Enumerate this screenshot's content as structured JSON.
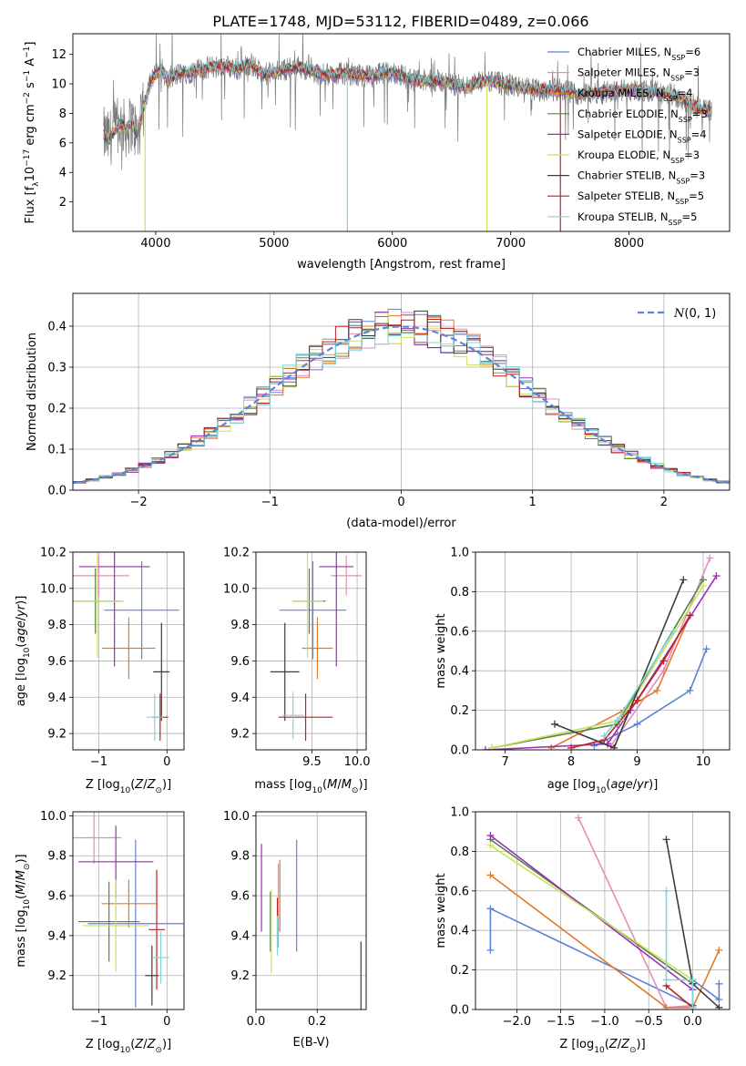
{
  "figure": {
    "title": "PLATE=1748, MJD=53112, FIBERID=0489, z=0.066",
    "colors": {
      "blue": "#5b84d6",
      "pink": "#e48cbf",
      "orange": "#e07b2a",
      "green": "#5a7f4e",
      "purple": "#9d2fb2",
      "lime": "#c8e35a",
      "black": "#3c3c3c",
      "red": "#c41f1f",
      "cyan": "#7fd5dd",
      "data_grey": "#7a7a7a",
      "grid": "#b0b0b0"
    }
  },
  "chart_data": [
    {
      "id": "spectrum",
      "type": "line",
      "xlabel": "wavelength [Angstrom, rest frame]",
      "ylabel": "Flux [f$_\\lambda$10$^{-17}$ erg cm$^{-2}$ s$^{-1}$ A$^{-1}$]",
      "ylabel_parts": [
        "Flux [f",
        "λ",
        "10",
        "−17",
        " erg cm",
        "−2",
        " s",
        "−1",
        " A",
        "−1",
        "]"
      ],
      "xlim": [
        3300,
        8850
      ],
      "ylim": [
        0,
        13.4
      ],
      "xticks": [
        4000,
        5000,
        6000,
        7000,
        8000
      ],
      "xtick_labels": [
        "4000",
        "5000",
        "6000",
        "7000",
        "8000"
      ],
      "yticks": [
        2,
        4,
        6,
        8,
        10,
        12
      ],
      "ytick_labels": [
        "2",
        "4",
        "6",
        "8",
        "10",
        "12"
      ],
      "grid": false,
      "legend_position": "top-right",
      "legend": [
        {
          "label": "Chabrier MILES, N",
          "sub": "SSP",
          "suffix": "=6",
          "color": "blue"
        },
        {
          "label": "Salpeter MILES, N",
          "sub": "SSP",
          "suffix": "=3",
          "color": "pink"
        },
        {
          "label": "Kroupa MILES, N",
          "sub": "SSP",
          "suffix": "=4",
          "color": "orange"
        },
        {
          "label": "Chabrier ELODIE, N",
          "sub": "SSP",
          "suffix": "=3",
          "color": "green"
        },
        {
          "label": "Salpeter ELODIE, N",
          "sub": "SSP",
          "suffix": "=4",
          "color": "purple"
        },
        {
          "label": "Kroupa ELODIE, N",
          "sub": "SSP",
          "suffix": "=3",
          "color": "lime"
        },
        {
          "label": "Chabrier STELIB, N",
          "sub": "SSP",
          "suffix": "=3",
          "color": "black"
        },
        {
          "label": "Salpeter STELIB, N",
          "sub": "SSP",
          "suffix": "=5",
          "color": "red"
        },
        {
          "label": "Kroupa STELIB, N",
          "sub": "SSP",
          "suffix": "=5",
          "color": "cyan"
        }
      ],
      "continuum": {
        "x": [
          3560,
          3600,
          3650,
          3700,
          3750,
          3800,
          3850,
          3900,
          3950,
          4000,
          4050,
          4100,
          4200,
          4300,
          4400,
          4500,
          4600,
          4700,
          4800,
          4900,
          5000,
          5200,
          5400,
          5600,
          5800,
          6000,
          6200,
          6400,
          6600,
          6800,
          7000,
          7200,
          7400,
          7600,
          7800,
          8000,
          8200,
          8400,
          8600,
          8700
        ],
        "y": [
          6.5,
          6.2,
          6.8,
          7.3,
          6.9,
          7.4,
          6.4,
          8.4,
          10.2,
          10.6,
          11.0,
          10.2,
          10.7,
          10.8,
          11.0,
          11.2,
          11.2,
          11.0,
          11.4,
          10.6,
          10.8,
          11.2,
          10.6,
          10.7,
          10.5,
          10.8,
          10.2,
          10.2,
          9.8,
          10.2,
          9.9,
          9.6,
          9.6,
          9.3,
          9.5,
          9.6,
          9.5,
          9.2,
          8.3,
          8.2
        ]
      },
      "model_spikes": [
        {
          "x": 3910,
          "y": 0,
          "color": "lime"
        },
        {
          "x": 5620,
          "y": 0,
          "color": "cyan"
        },
        {
          "x": 6800,
          "y": 0,
          "color": "lime"
        },
        {
          "x": 7420,
          "y": 0,
          "color": "red"
        }
      ]
    },
    {
      "id": "residuals",
      "type": "histogram",
      "xlabel": "(data-model)/error",
      "ylabel": "Normed distribution",
      "xlim": [
        -2.5,
        2.5
      ],
      "ylim": [
        0,
        0.48
      ],
      "xticks": [
        -2,
        -1,
        0,
        1,
        2
      ],
      "xtick_labels": [
        "−2",
        "−1",
        "0",
        "1",
        "2"
      ],
      "yticks": [
        0.0,
        0.1,
        0.2,
        0.3,
        0.4
      ],
      "ytick_labels": [
        "0.0",
        "0.1",
        "0.2",
        "0.3",
        "0.4"
      ],
      "grid": true,
      "legend_position": "top-right",
      "legend": [
        {
          "label": "N(0, 1)",
          "color": "blue",
          "style": "dashed"
        }
      ],
      "bin_width": 0.1,
      "reference_curve": "N(0,1)"
    },
    {
      "id": "age_vs_Z",
      "type": "scatter",
      "xlabel": "Z [log10(Z/Z⊙)]",
      "ylabel": "age  [log10(age/yr)]",
      "xlim": [
        -1.38,
        0.25
      ],
      "ylim": [
        9.11,
        10.2
      ],
      "xticks": [
        -1,
        0
      ],
      "xtick_labels": [
        "−1",
        "0"
      ],
      "yticks": [
        9.2,
        9.4,
        9.6,
        9.8,
        10.0,
        10.2
      ],
      "ytick_labels": [
        "9.2",
        "9.4",
        "9.6",
        "9.8",
        "10.0",
        "10.2"
      ],
      "grid": true,
      "points": [
        {
          "color": "blue",
          "x": -0.37,
          "xerr": 0.55,
          "y": 9.88,
          "yerr": 0.27
        },
        {
          "color": "pink",
          "x": -1.0,
          "xerr": 0.45,
          "y": 10.07,
          "yerr": 0.11
        },
        {
          "color": "orange",
          "x": -0.56,
          "xerr": 0.39,
          "y": 9.67,
          "yerr": 0.17
        },
        {
          "color": "green",
          "x": -1.05,
          "xerr": 0.38,
          "y": 9.93,
          "yerr": 0.18
        },
        {
          "color": "purple",
          "x": -0.77,
          "xerr": 0.52,
          "y": 10.12,
          "yerr": 0.55
        },
        {
          "color": "lime",
          "x": -1.02,
          "xerr": 0.39,
          "y": 9.93,
          "yerr": 0.31
        },
        {
          "color": "black",
          "x": -0.08,
          "xerr": 0.12,
          "y": 9.54,
          "yerr": 0.27
        },
        {
          "color": "red",
          "x": -0.1,
          "xerr": 0.12,
          "y": 9.29,
          "yerr": 0.13
        },
        {
          "color": "cyan",
          "x": -0.18,
          "xerr": 0.12,
          "y": 9.29,
          "yerr": 0.13
        }
      ]
    },
    {
      "id": "age_vs_mass",
      "type": "scatter",
      "xlabel": "mass [log10(M/M⊙)]",
      "ylabel": "",
      "xlim": [
        8.88,
        10.1
      ],
      "ylim": [
        9.11,
        10.2
      ],
      "xticks": [
        9.5,
        10.0
      ],
      "xtick_labels": [
        "9.5",
        "10.0"
      ],
      "yticks": [
        9.2,
        9.4,
        9.6,
        9.8,
        10.0,
        10.2
      ],
      "ytick_labels": [
        "9.2",
        "9.4",
        "9.6",
        "9.8",
        "10.0",
        "10.2"
      ],
      "grid": true,
      "points": [
        {
          "color": "blue",
          "x": 9.51,
          "xerr": 0.37,
          "y": 9.88,
          "yerr": 0.27
        },
        {
          "color": "pink",
          "x": 9.88,
          "xerr": 0.17,
          "y": 10.07,
          "yerr": 0.11
        },
        {
          "color": "orange",
          "x": 9.56,
          "xerr": 0.17,
          "y": 9.67,
          "yerr": 0.17
        },
        {
          "color": "green",
          "x": 9.47,
          "xerr": 0.18,
          "y": 9.93,
          "yerr": 0.18
        },
        {
          "color": "purple",
          "x": 9.77,
          "xerr": 0.19,
          "y": 10.12,
          "yerr": 0.55
        },
        {
          "color": "lime",
          "x": 9.45,
          "xerr": 0.17,
          "y": 9.93,
          "yerr": 0.31
        },
        {
          "color": "black",
          "x": 9.2,
          "xerr": 0.16,
          "y": 9.54,
          "yerr": 0.27
        },
        {
          "color": "red",
          "x": 9.43,
          "xerr": 0.3,
          "y": 9.29,
          "yerr": 0.13
        },
        {
          "color": "cyan",
          "x": 9.29,
          "xerr": 0.12,
          "y": 9.3,
          "yerr": 0.13
        }
      ]
    },
    {
      "id": "massweight_vs_age",
      "type": "line",
      "xlabel": "age  [log10(age/yr)]",
      "ylabel": "mass weight",
      "xlim": [
        6.55,
        10.4
      ],
      "ylim": [
        0,
        1.0
      ],
      "xticks": [
        7,
        8,
        9,
        10
      ],
      "xtick_labels": [
        "7",
        "8",
        "9",
        "10"
      ],
      "yticks": [
        0.0,
        0.2,
        0.4,
        0.6,
        0.8,
        1.0
      ],
      "ytick_labels": [
        "0.0",
        "0.2",
        "0.4",
        "0.6",
        "0.8",
        "1.0"
      ],
      "grid": true,
      "series": [
        {
          "color": "blue",
          "x": [
            8.35,
            8.7,
            9.0,
            9.8,
            10.05
          ],
          "y": [
            0.02,
            0.08,
            0.13,
            0.3,
            0.51
          ]
        },
        {
          "color": "pink",
          "x": [
            8.6,
            9.4,
            10.1
          ],
          "y": [
            0.02,
            0.4,
            0.97
          ]
        },
        {
          "color": "orange",
          "x": [
            7.7,
            8.8,
            9.3,
            9.8
          ],
          "y": [
            0.01,
            0.2,
            0.3,
            0.68
          ]
        },
        {
          "color": "green",
          "x": [
            6.8,
            8.7,
            10.0
          ],
          "y": [
            0.01,
            0.13,
            0.86
          ]
        },
        {
          "color": "purple",
          "x": [
            6.7,
            8.55,
            8.9,
            10.2
          ],
          "y": [
            0.0,
            0.03,
            0.2,
            0.88
          ]
        },
        {
          "color": "lime",
          "x": [
            6.8,
            8.75,
            10.0
          ],
          "y": [
            0.01,
            0.15,
            0.83
          ]
        },
        {
          "color": "black",
          "x": [
            7.75,
            8.65,
            9.7
          ],
          "y": [
            0.13,
            0.01,
            0.86
          ]
        },
        {
          "color": "red",
          "x": [
            8.0,
            8.5,
            9.0,
            9.4,
            9.8
          ],
          "y": [
            0.01,
            0.05,
            0.25,
            0.45,
            0.68
          ]
        },
        {
          "color": "cyan",
          "x": [
            8.5,
            8.7,
            9.55
          ],
          "y": [
            0.07,
            0.15,
            0.6
          ]
        }
      ]
    },
    {
      "id": "mass_vs_Z",
      "type": "scatter",
      "xlabel": "Z [log10(Z/Z⊙)]",
      "ylabel": "mass [log10(M/M⊙)]",
      "xlim": [
        -1.38,
        0.25
      ],
      "ylim": [
        9.03,
        10.02
      ],
      "xticks": [
        -1,
        0
      ],
      "xtick_labels": [
        "−1",
        "0"
      ],
      "yticks": [
        9.2,
        9.4,
        9.6,
        9.8,
        10.0
      ],
      "ytick_labels": [
        "9.2",
        "9.4",
        "9.6",
        "9.8",
        "10.0"
      ],
      "grid": true,
      "points": [
        {
          "color": "blue",
          "x": -0.46,
          "xerr": 0.7,
          "y": 9.46,
          "yerr": 0.42
        },
        {
          "color": "pink",
          "x": -1.07,
          "xerr": 0.4,
          "y": 9.89,
          "yerr": 0.13
        },
        {
          "color": "orange",
          "x": -0.56,
          "xerr": 0.4,
          "y": 9.56,
          "yerr": 0.12
        },
        {
          "color": "green",
          "x": -0.85,
          "xerr": 0.45,
          "y": 9.47,
          "yerr": 0.2
        },
        {
          "color": "purple",
          "x": -0.75,
          "xerr": 0.55,
          "y": 9.77,
          "yerr": 0.18
        },
        {
          "color": "lime",
          "x": -0.75,
          "xerr": 0.49,
          "y": 9.45,
          "yerr": 0.23
        },
        {
          "color": "black",
          "x": -0.22,
          "xerr": 0.1,
          "y": 9.2,
          "yerr": 0.15
        },
        {
          "color": "red",
          "x": -0.15,
          "xerr": 0.12,
          "y": 9.43,
          "yerr": 0.3
        },
        {
          "color": "cyan",
          "x": -0.09,
          "xerr": 0.12,
          "y": 9.29,
          "yerr": 0.13
        }
      ]
    },
    {
      "id": "mass_vs_EBV",
      "type": "scatter",
      "xlabel": "E(B-V)",
      "ylabel": "",
      "xlim": [
        0,
        0.36
      ],
      "ylim": [
        9.03,
        10.02
      ],
      "xticks": [
        0.0,
        0.2
      ],
      "xtick_labels": [
        "0.0",
        "0.2"
      ],
      "yticks": [
        9.2,
        9.4,
        9.6,
        9.8,
        10.0
      ],
      "ytick_labels": [
        "9.2",
        "9.4",
        "9.6",
        "9.8",
        "10.0"
      ],
      "grid": true,
      "points": [
        {
          "color": "blue",
          "x": 0.133,
          "y": 9.6,
          "yerr": 0.28
        },
        {
          "color": "pink",
          "x": 0.073,
          "y": 9.55,
          "yerr": 0.21
        },
        {
          "color": "orange",
          "x": 0.078,
          "y": 9.6,
          "yerr": 0.18
        },
        {
          "color": "green",
          "x": 0.047,
          "y": 9.47,
          "yerr": 0.15
        },
        {
          "color": "purple",
          "x": 0.018,
          "y": 9.64,
          "yerr": 0.22
        },
        {
          "color": "lime",
          "x": 0.05,
          "y": 9.42,
          "yerr": 0.21
        },
        {
          "color": "black",
          "x": 0.343,
          "y": 9.15,
          "yerr": 0.22
        },
        {
          "color": "red",
          "x": 0.07,
          "y": 9.47,
          "yerr": 0.12
        },
        {
          "color": "cyan",
          "x": 0.07,
          "y": 9.4,
          "yerr": 0.1
        }
      ]
    },
    {
      "id": "massweight_vs_Z",
      "type": "line",
      "xlabel": "Z [log10(Z/Z⊙)]",
      "ylabel": "mass weight",
      "xlim": [
        -2.47,
        0.42
      ],
      "ylim": [
        0,
        1.0
      ],
      "xticks": [
        -2.0,
        -1.5,
        -1.0,
        -0.5,
        0.0
      ],
      "xtick_labels": [
        "−2.0",
        "−1.5",
        "−1.0",
        "−0.5",
        "0.0"
      ],
      "yticks": [
        0.0,
        0.2,
        0.4,
        0.6,
        0.8,
        1.0
      ],
      "ytick_labels": [
        "0.0",
        "0.2",
        "0.4",
        "0.6",
        "0.8",
        "1.0"
      ],
      "grid": true,
      "series": [
        {
          "color": "blue",
          "x": [
            -2.3,
            -2.3,
            0.0,
            0.0,
            0.3,
            0.3
          ],
          "y": [
            0.3,
            0.51,
            0.02,
            0.15,
            0.05,
            0.13
          ]
        },
        {
          "color": "pink",
          "x": [
            -1.3,
            -0.3,
            0.0
          ],
          "y": [
            0.97,
            0.01,
            0.02
          ]
        },
        {
          "color": "orange",
          "x": [
            -2.3,
            -0.3,
            0.0,
            0.3
          ],
          "y": [
            0.68,
            0.01,
            0.01,
            0.3
          ]
        },
        {
          "color": "green",
          "x": [
            -2.3,
            0.0,
            0.0
          ],
          "y": [
            0.86,
            0.13,
            0.01
          ]
        },
        {
          "color": "purple",
          "x": [
            -2.3,
            0.0,
            0.0
          ],
          "y": [
            0.88,
            0.1,
            0.02
          ]
        },
        {
          "color": "lime",
          "x": [
            -2.3,
            0.0,
            0.0
          ],
          "y": [
            0.83,
            0.15,
            0.02
          ]
        },
        {
          "color": "black",
          "x": [
            -0.3,
            0.0,
            0.3
          ],
          "y": [
            0.86,
            0.13,
            0.01
          ]
        },
        {
          "color": "red",
          "x": [
            -0.3,
            0.0,
            0.0
          ],
          "y": [
            0.12,
            0.01,
            0.02
          ]
        },
        {
          "color": "cyan",
          "x": [
            -0.3,
            -0.3,
            0.0,
            0.0
          ],
          "y": [
            0.6,
            0.15,
            0.15,
            0.01
          ]
        }
      ]
    }
  ]
}
